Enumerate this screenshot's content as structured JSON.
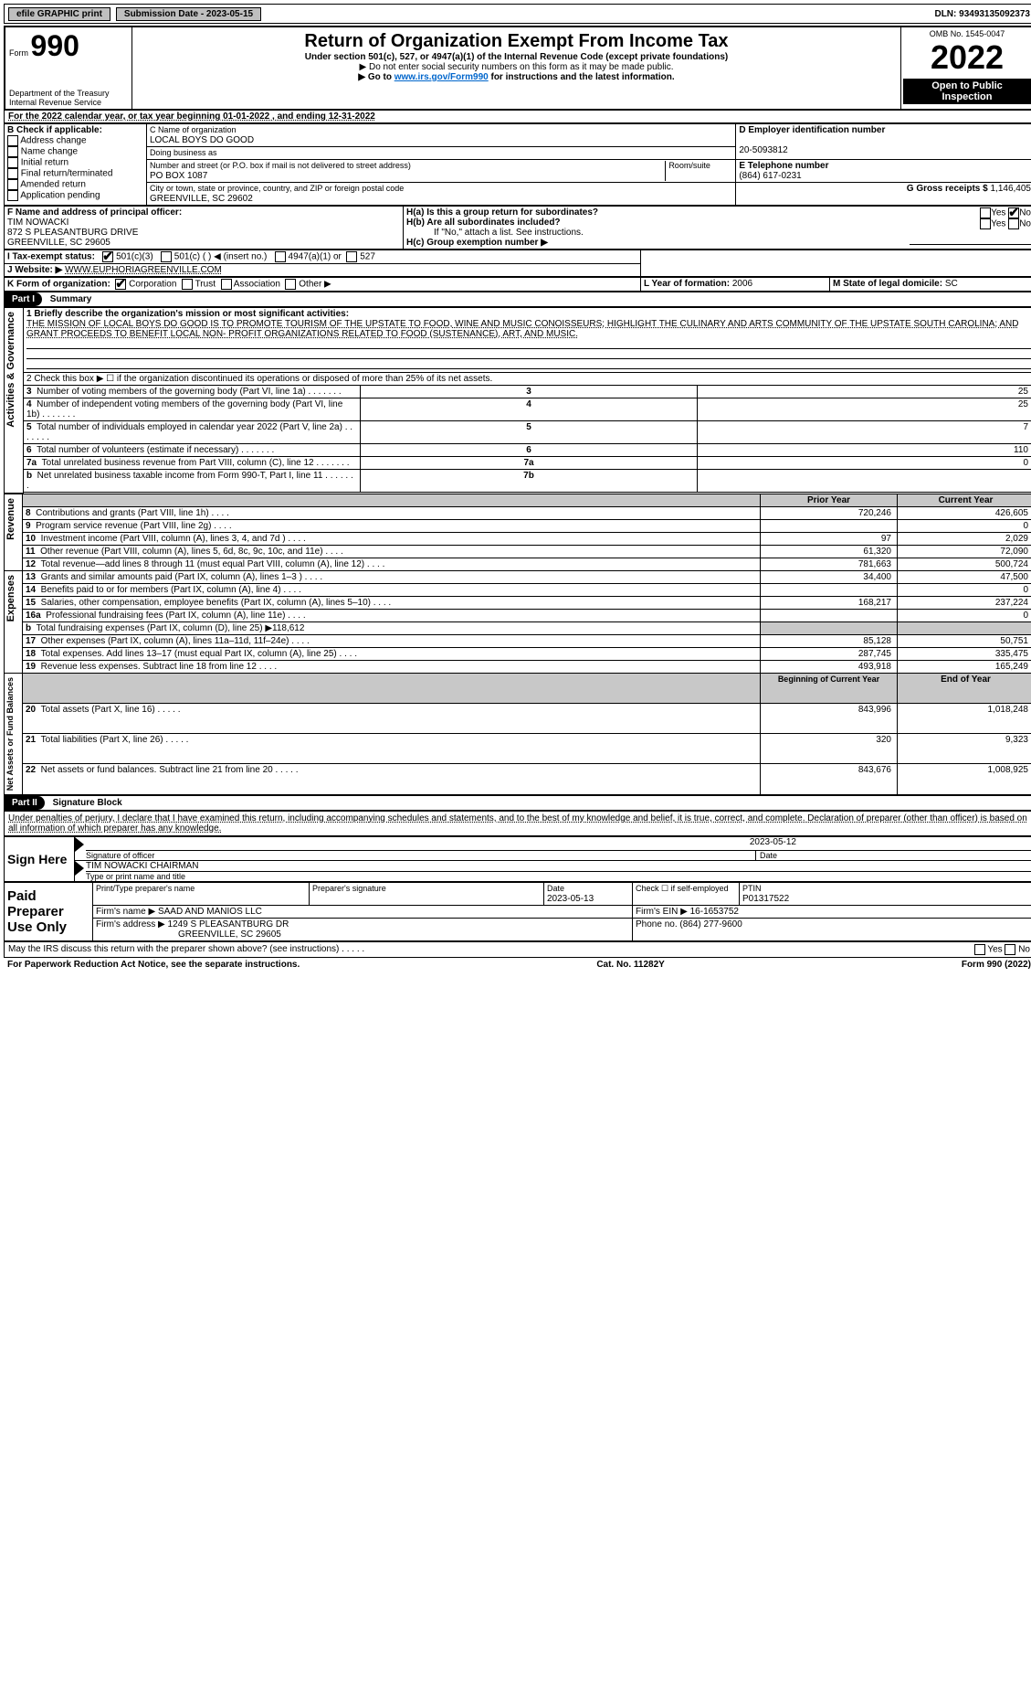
{
  "topbar": {
    "efile_label": "efile GRAPHIC print",
    "submission_label": "Submission Date - 2023-05-15",
    "dln_label": "DLN: 93493135092373"
  },
  "header": {
    "form_label": "Form",
    "form_number": "990",
    "title": "Return of Organization Exempt From Income Tax",
    "subtitle": "Under section 501(c), 527, or 4947(a)(1) of the Internal Revenue Code (except private foundations)",
    "warning": "▶ Do not enter social security numbers on this form as it may be made public.",
    "goto_prefix": "▶ Go to ",
    "goto_link": "www.irs.gov/Form990",
    "goto_suffix": " for instructions and the latest information.",
    "dept": "Department of the Treasury",
    "irs": "Internal Revenue Service",
    "omb": "OMB No. 1545-0047",
    "year": "2022",
    "open": "Open to Public Inspection"
  },
  "lineA": {
    "text": "For the 2022 calendar year, or tax year beginning 01-01-2022    , and ending 12-31-2022"
  },
  "boxB": {
    "label": "B Check if applicable:",
    "items": [
      "Address change",
      "Name change",
      "Initial return",
      "Final return/terminated",
      "Amended return",
      "Application pending"
    ]
  },
  "boxC": {
    "name_label": "C Name of organization",
    "name": "LOCAL BOYS DO GOOD",
    "dba_label": "Doing business as",
    "dba": "",
    "street_label": "Number and street (or P.O. box if mail is not delivered to street address)",
    "room_label": "Room/suite",
    "street": "PO BOX 1087",
    "city_label": "City or town, state or province, country, and ZIP or foreign postal code",
    "city": "GREENVILLE, SC  29602"
  },
  "boxD": {
    "label": "D Employer identification number",
    "value": "20-5093812"
  },
  "boxE": {
    "label": "E Telephone number",
    "value": "(864) 617-0231"
  },
  "boxG": {
    "label": "G Gross receipts $",
    "value": "1,146,405"
  },
  "boxF": {
    "label": "F Name and address of principal officer:",
    "name": "TIM NOWACKI",
    "addr1": "872 S PLEASANTBURG DRIVE",
    "addr2": "GREENVILLE, SC  29605"
  },
  "boxH": {
    "ha_label": "H(a)  Is this a group return for subordinates?",
    "ha_yes": "Yes",
    "ha_no": "No",
    "hb_label": "H(b)  Are all subordinates included?",
    "hb_note": "If \"No,\" attach a list. See instructions.",
    "hc_label": "H(c)  Group exemption number ▶"
  },
  "boxI": {
    "label": "I Tax-exempt status:",
    "opts": [
      "501(c)(3)",
      "501(c) (  ) ◀ (insert no.)",
      "4947(a)(1) or",
      "527"
    ]
  },
  "boxJ": {
    "label": "J Website: ▶",
    "value": "WWW.EUPHORIAGREENVILLE.COM"
  },
  "boxK": {
    "label": "K Form of organization:",
    "opts": [
      "Corporation",
      "Trust",
      "Association",
      "Other ▶"
    ]
  },
  "boxL": {
    "label": "L Year of formation:",
    "value": "2006"
  },
  "boxM": {
    "label": "M State of legal domicile:",
    "value": "SC"
  },
  "partI": {
    "header": "Part I",
    "title": "Summary",
    "line1_label": "1  Briefly describe the organization's mission or most significant activities:",
    "mission": "THE MISSION OF LOCAL BOYS DO GOOD IS TO PROMOTE TOURISM OF THE UPSTATE TO FOOD, WINE AND MUSIC CONOISSEURS; HIGHLIGHT THE CULINARY AND ARTS COMMUNITY OF THE UPSTATE SOUTH CAROLINA; AND GRANT PROCEEDS TO BENEFIT LOCAL NON- PROFIT ORGANIZATIONS RELATED TO FOOD (SUSTENANCE), ART, AND MUSIC.",
    "line2": "2  Check this box ▶ ☐  if the organization discontinued its operations or disposed of more than 25% of its net assets.",
    "rows_top": [
      {
        "n": "3",
        "label": "Number of voting members of the governing body (Part VI, line 1a)",
        "box": "3",
        "val": "25"
      },
      {
        "n": "4",
        "label": "Number of independent voting members of the governing body (Part VI, line 1b)",
        "box": "4",
        "val": "25"
      },
      {
        "n": "5",
        "label": "Total number of individuals employed in calendar year 2022 (Part V, line 2a)",
        "box": "5",
        "val": "7"
      },
      {
        "n": "6",
        "label": "Total number of volunteers (estimate if necessary)",
        "box": "6",
        "val": "110"
      },
      {
        "n": "7a",
        "label": "Total unrelated business revenue from Part VIII, column (C), line 12",
        "box": "7a",
        "val": "0"
      },
      {
        "n": "b",
        "label": "Net unrelated business taxable income from Form 990-T, Part I, line 11",
        "box": "7b",
        "val": ""
      }
    ],
    "col_prior": "Prior Year",
    "col_current": "Current Year",
    "revenue": [
      {
        "n": "8",
        "label": "Contributions and grants (Part VIII, line 1h)",
        "prior": "720,246",
        "cur": "426,605"
      },
      {
        "n": "9",
        "label": "Program service revenue (Part VIII, line 2g)",
        "prior": "",
        "cur": "0"
      },
      {
        "n": "10",
        "label": "Investment income (Part VIII, column (A), lines 3, 4, and 7d )",
        "prior": "97",
        "cur": "2,029"
      },
      {
        "n": "11",
        "label": "Other revenue (Part VIII, column (A), lines 5, 6d, 8c, 9c, 10c, and 11e)",
        "prior": "61,320",
        "cur": "72,090"
      },
      {
        "n": "12",
        "label": "Total revenue—add lines 8 through 11 (must equal Part VIII, column (A), line 12)",
        "prior": "781,663",
        "cur": "500,724"
      }
    ],
    "expenses": [
      {
        "n": "13",
        "label": "Grants and similar amounts paid (Part IX, column (A), lines 1–3 )",
        "prior": "34,400",
        "cur": "47,500"
      },
      {
        "n": "14",
        "label": "Benefits paid to or for members (Part IX, column (A), line 4)",
        "prior": "",
        "cur": "0"
      },
      {
        "n": "15",
        "label": "Salaries, other compensation, employee benefits (Part IX, column (A), lines 5–10)",
        "prior": "168,217",
        "cur": "237,224"
      },
      {
        "n": "16a",
        "label": "Professional fundraising fees (Part IX, column (A), line 11e)",
        "prior": "",
        "cur": "0"
      },
      {
        "n": "b",
        "label": "Total fundraising expenses (Part IX, column (D), line 25) ▶118,612",
        "prior": "SHADE",
        "cur": "SHADE"
      },
      {
        "n": "17",
        "label": "Other expenses (Part IX, column (A), lines 11a–11d, 11f–24e)",
        "prior": "85,128",
        "cur": "50,751"
      },
      {
        "n": "18",
        "label": "Total expenses. Add lines 13–17 (must equal Part IX, column (A), line 25)",
        "prior": "287,745",
        "cur": "335,475"
      },
      {
        "n": "19",
        "label": "Revenue less expenses. Subtract line 18 from line 12",
        "prior": "493,918",
        "cur": "165,249"
      }
    ],
    "col_begin": "Beginning of Current Year",
    "col_end": "End of Year",
    "netassets": [
      {
        "n": "20",
        "label": "Total assets (Part X, line 16)",
        "prior": "843,996",
        "cur": "1,018,248"
      },
      {
        "n": "21",
        "label": "Total liabilities (Part X, line 26)",
        "prior": "320",
        "cur": "9,323"
      },
      {
        "n": "22",
        "label": "Net assets or fund balances. Subtract line 21 from line 20",
        "prior": "843,676",
        "cur": "1,008,925"
      }
    ],
    "vtab1": "Activities & Governance",
    "vtab2": "Revenue",
    "vtab3": "Expenses",
    "vtab4": "Net Assets or Fund Balances"
  },
  "partII": {
    "header": "Part II",
    "title": "Signature Block",
    "declaration": "Under penalties of perjury, I declare that I have examined this return, including accompanying schedules and statements, and to the best of my knowledge and belief, it is true, correct, and complete. Declaration of preparer (other than officer) is based on all information of which preparer has any knowledge.",
    "sign_here": "Sign Here",
    "sig_officer": "Signature of officer",
    "sig_date": "2023-05-12",
    "sig_date_label": "Date",
    "officer_name": "TIM NOWACKI CHAIRMAN",
    "officer_name_label": "Type or print name and title",
    "paid": "Paid Preparer Use Only",
    "prep_name_label": "Print/Type preparer's name",
    "prep_sig_label": "Preparer's signature",
    "date_label": "Date",
    "date_val": "2023-05-13",
    "check_label": "Check ☐ if self-employed",
    "ptin_label": "PTIN",
    "ptin_val": "P01317522",
    "firm_name_label": "Firm's name    ▶",
    "firm_name": "SAAD AND MANIOS LLC",
    "firm_ein_label": "Firm's EIN ▶",
    "firm_ein": "16-1653752",
    "firm_addr_label": "Firm's address ▶",
    "firm_addr1": "1249 S PLEASANTBURG DR",
    "firm_addr2": "GREENVILLE, SC  29605",
    "phone_label": "Phone no.",
    "phone": "(864) 277-9600",
    "discuss": "May the IRS discuss this return with the preparer shown above? (see instructions)",
    "yes": "Yes",
    "no": "No"
  },
  "footer": {
    "left": "For Paperwork Reduction Act Notice, see the separate instructions.",
    "mid": "Cat. No. 11282Y",
    "right": "Form 990 (2022)"
  }
}
